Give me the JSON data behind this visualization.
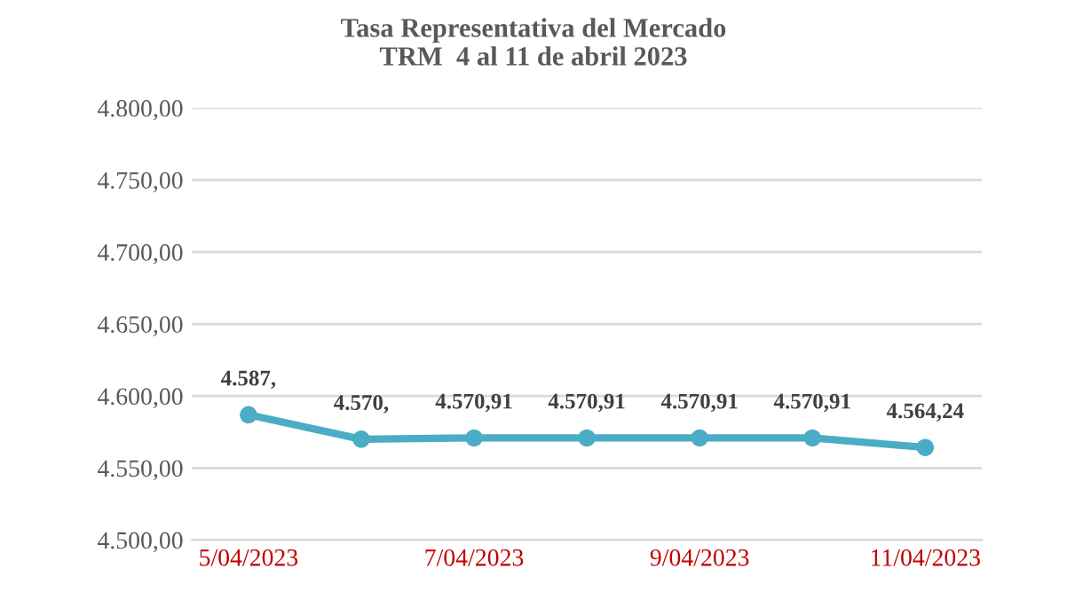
{
  "chart_data": {
    "type": "line",
    "title": "Tasa Representativa del Mercado\nTRM  4 al 11 de abril 2023",
    "categories": [
      "5/04/2023",
      null,
      "7/04/2023",
      null,
      "9/04/2023",
      null,
      "11/04/2023"
    ],
    "series": [
      {
        "color": "#4bacc6",
        "values": [
          4587,
          4570,
          4570.91,
          4570.91,
          4570.91,
          4570.91,
          4564.24
        ],
        "value_labels": [
          "4.587,",
          "4.570,",
          "4.570,91",
          "4.570,91",
          "4.570,91",
          "4.570,91",
          "4.564,24"
        ]
      }
    ],
    "ylim": [
      4500,
      4800
    ],
    "yticks": [
      {
        "value": 4500,
        "label": "4.500,00"
      },
      {
        "value": 4550,
        "label": "4.550,00"
      },
      {
        "value": 4600,
        "label": "4.600,00"
      },
      {
        "value": 4650,
        "label": "4.650,00"
      },
      {
        "value": 4700,
        "label": "4.700,00"
      },
      {
        "value": 4750,
        "label": "4.750,00"
      },
      {
        "value": 4800,
        "label": "4.800,00"
      }
    ],
    "grid": "y",
    "marker": "circle",
    "line_style": "solid",
    "legend": false
  }
}
